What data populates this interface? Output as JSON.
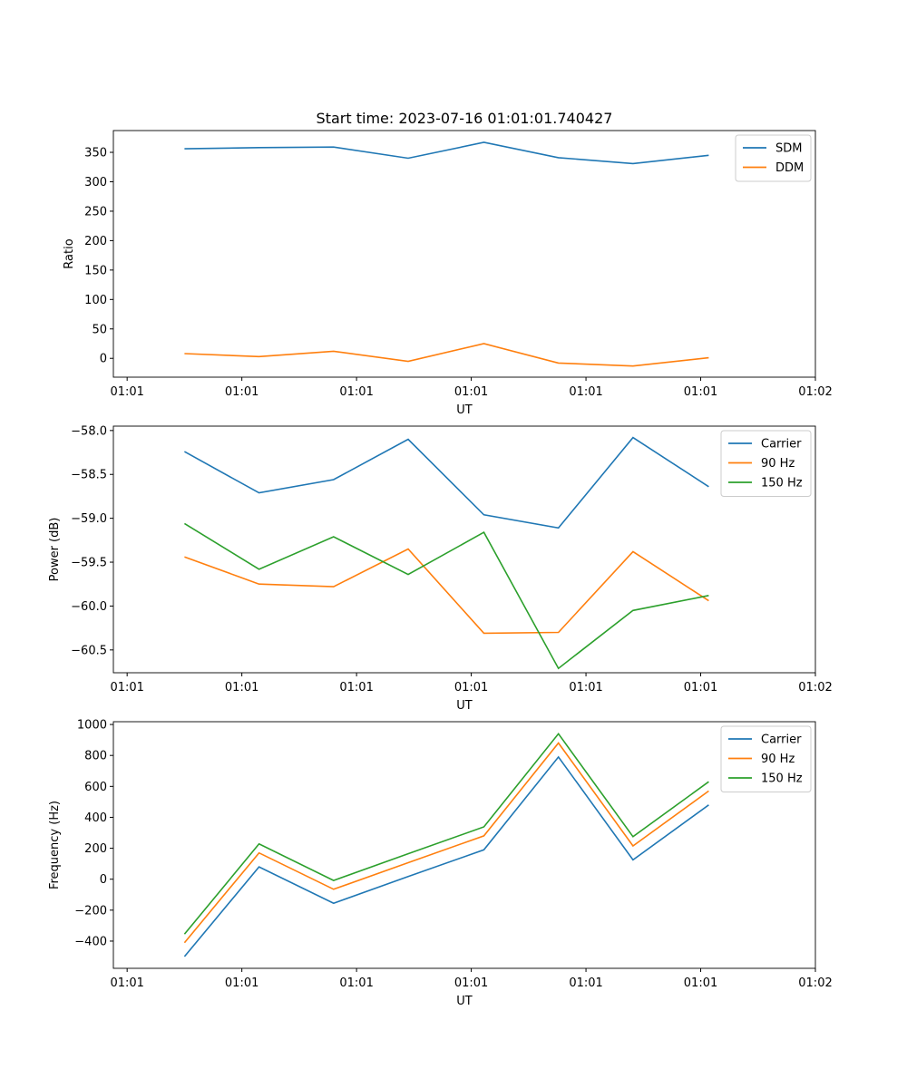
{
  "chart_data": [
    {
      "type": "line",
      "title": "Start time: 2023-07-16 01:01:01.740427",
      "xlabel": "UT",
      "ylabel": "Ratio",
      "x": [
        0.5,
        1.15,
        1.8,
        2.45,
        3.11,
        3.76,
        4.41,
        5.07
      ],
      "xlim": [
        -0.12,
        6.0
      ],
      "xticks": [
        0,
        1,
        2,
        3,
        4,
        5,
        6
      ],
      "xtick_labels": [
        "01:01",
        "01:01",
        "01:01",
        "01:01",
        "01:01",
        "01:01",
        "01:02"
      ],
      "ylim": [
        -32,
        387
      ],
      "yticks": [
        0,
        50,
        100,
        150,
        200,
        250,
        300,
        350
      ],
      "ytick_labels": [
        "0",
        "50",
        "100",
        "150",
        "200",
        "250",
        "300",
        "350"
      ],
      "legend": "top-right",
      "series": [
        {
          "name": "SDM",
          "color": "#1f77b4",
          "values": [
            356,
            358,
            359,
            340,
            367,
            341,
            331,
            345
          ]
        },
        {
          "name": "DDM",
          "color": "#ff7f0e",
          "values": [
            8,
            3,
            12,
            -5,
            25,
            -8,
            -13,
            1
          ]
        }
      ]
    },
    {
      "type": "line",
      "title": "",
      "xlabel": "UT",
      "ylabel": "Power (dB)",
      "x": [
        0.5,
        1.15,
        1.8,
        2.45,
        3.11,
        3.76,
        4.41,
        5.07
      ],
      "xlim": [
        -0.12,
        6.0
      ],
      "xticks": [
        0,
        1,
        2,
        3,
        4,
        5,
        6
      ],
      "xtick_labels": [
        "01:01",
        "01:01",
        "01:01",
        "01:01",
        "01:01",
        "01:01",
        "01:02"
      ],
      "ylim": [
        -60.76,
        -57.95
      ],
      "yticks": [
        -60.5,
        -60.0,
        -59.5,
        -59.0,
        -58.5,
        -58.0
      ],
      "ytick_labels": [
        "−60.5",
        "−60.0",
        "−59.5",
        "−59.0",
        "−58.5",
        "−58.0"
      ],
      "legend": "top-right",
      "series": [
        {
          "name": "Carrier",
          "color": "#1f77b4",
          "values": [
            -58.24,
            -58.71,
            -58.56,
            -58.1,
            -58.96,
            -59.11,
            -58.08,
            -58.64
          ]
        },
        {
          "name": "90 Hz",
          "color": "#ff7f0e",
          "values": [
            -59.44,
            -59.75,
            -59.78,
            -59.35,
            -60.31,
            -60.3,
            -59.38,
            -59.94
          ]
        },
        {
          "name": "150 Hz",
          "color": "#2ca02c",
          "values": [
            -59.06,
            -59.58,
            -59.21,
            -59.64,
            -59.16,
            -60.71,
            -60.05,
            -59.88
          ]
        }
      ]
    },
    {
      "type": "line",
      "title": "",
      "xlabel": "UT",
      "ylabel": "Frequency (Hz)",
      "x": [
        0.5,
        1.15,
        1.8,
        2.45,
        3.11,
        3.76,
        4.41,
        5.07
      ],
      "xlim": [
        -0.12,
        6.0
      ],
      "xticks": [
        0,
        1,
        2,
        3,
        4,
        5,
        6
      ],
      "xtick_labels": [
        "01:01",
        "01:01",
        "01:01",
        "01:01",
        "01:01",
        "01:01",
        "01:02"
      ],
      "ylim": [
        -576,
        1018
      ],
      "yticks": [
        -400,
        -200,
        0,
        200,
        400,
        600,
        800,
        1000
      ],
      "ytick_labels": [
        "−400",
        "−200",
        "0",
        "200",
        "400",
        "600",
        "800",
        "1000"
      ],
      "legend": "top-right",
      "series": [
        {
          "name": "Carrier",
          "color": "#1f77b4",
          "values": [
            -500,
            80,
            -155,
            17,
            190,
            790,
            125,
            480
          ]
        },
        {
          "name": "90 Hz",
          "color": "#ff7f0e",
          "values": [
            -410,
            170,
            -65,
            107,
            280,
            880,
            215,
            570
          ]
        },
        {
          "name": "150 Hz",
          "color": "#2ca02c",
          "values": [
            -355,
            228,
            -8,
            165,
            338,
            940,
            275,
            630
          ]
        }
      ]
    }
  ]
}
